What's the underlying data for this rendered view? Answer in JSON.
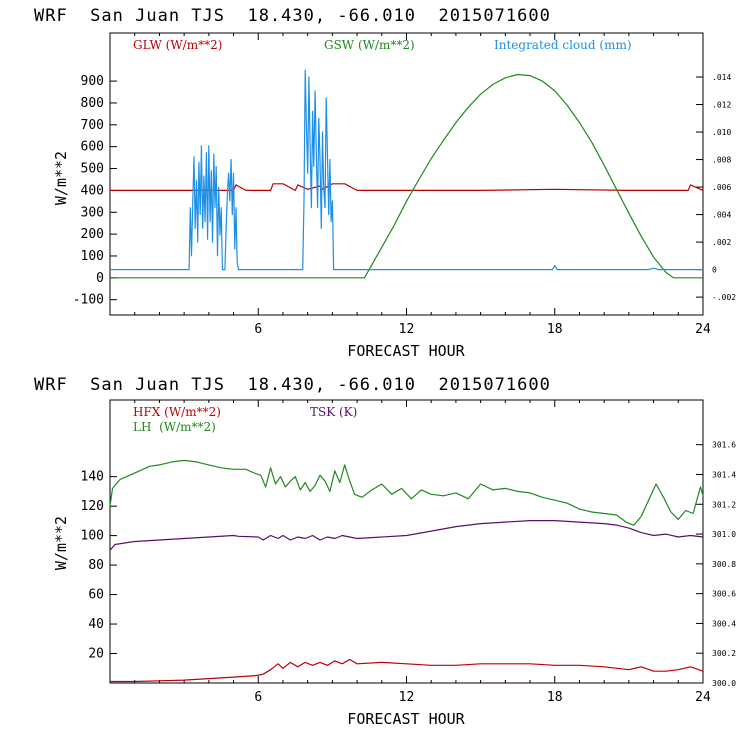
{
  "charts": [
    {
      "title": "WRF  San Juan TJS  18.430, -66.010  2015071600",
      "xlabel": "FORECAST HOUR",
      "ylabel": "W/m**2",
      "x_ticks": [
        "6",
        "12",
        "18",
        "24"
      ],
      "y_ticks": [
        "-100",
        "0",
        "100",
        "200",
        "300",
        "400",
        "500",
        "600",
        "700",
        "800",
        "900"
      ],
      "y2_ticks": [
        "-.002",
        "0",
        ".002",
        ".004",
        ".006",
        ".008",
        ".010",
        ".012",
        ".014"
      ],
      "legend": [
        {
          "label": "GLW (W/m**2)",
          "color": "#c00000"
        },
        {
          "label": "GSW (W/m**2)",
          "color": "#1f8a1f"
        },
        {
          "label": "Integrated cloud (mm)",
          "color": "#1e8fe6"
        }
      ]
    },
    {
      "title": "WRF  San Juan TJS  18.430, -66.010  2015071600",
      "xlabel": "FORECAST HOUR",
      "ylabel": "W/m**2",
      "x_ticks": [
        "6",
        "12",
        "18",
        "24"
      ],
      "y_ticks": [
        "20",
        "40",
        "60",
        "80",
        "100",
        "120",
        "140"
      ],
      "y2_ticks": [
        "300.0",
        "300.2",
        "300.4",
        "300.6",
        "300.8",
        "301.0",
        "301.2",
        "301.4",
        "301.6"
      ],
      "legend": [
        {
          "label": "HFX (W/m**2)",
          "color": "#c00000"
        },
        {
          "label": "LH  (W/m**2)",
          "color": "#1f8a1f"
        },
        {
          "label": "TSK (K)",
          "color": "#5a0f6e"
        }
      ]
    }
  ],
  "chart_data": [
    {
      "type": "line",
      "title": "WRF  San Juan TJS  18.430, -66.010  2015071600",
      "xlabel": "FORECAST HOUR",
      "ylabel": "W/m**2",
      "xlim": [
        0,
        24
      ],
      "ylim": [
        -170,
        1120
      ],
      "y2lim": [
        -0.0033,
        0.0172
      ],
      "grid": false,
      "legend_position": "top",
      "series": [
        {
          "name": "GLW (W/m**2)",
          "axis": "left",
          "color": "#c00000",
          "x": [
            0,
            3,
            5,
            5.1,
            5.5,
            6.5,
            6.6,
            7,
            7.5,
            7.6,
            8,
            8.5,
            8.6,
            9,
            9.5,
            10,
            12,
            15,
            18,
            21,
            23.4,
            23.5,
            24
          ],
          "y": [
            400,
            400,
            400,
            425,
            400,
            400,
            430,
            430,
            400,
            425,
            405,
            420,
            405,
            430,
            430,
            400,
            400,
            400,
            405,
            400,
            400,
            425,
            400
          ]
        },
        {
          "name": "GSW (W/m**2)",
          "axis": "left",
          "color": "#1f8a1f",
          "x": [
            0,
            10.3,
            10.5,
            11,
            11.5,
            12,
            12.5,
            13,
            13.5,
            14,
            14.5,
            15,
            15.5,
            16,
            16.5,
            17,
            17.5,
            18,
            18.5,
            19,
            19.5,
            20,
            20.5,
            21,
            21.5,
            22,
            22.5,
            22.8,
            24
          ],
          "y": [
            0,
            0,
            40,
            140,
            240,
            350,
            450,
            545,
            630,
            710,
            780,
            840,
            885,
            915,
            930,
            925,
            900,
            855,
            790,
            710,
            620,
            515,
            405,
            295,
            190,
            95,
            25,
            0,
            0
          ]
        },
        {
          "name": "Integrated cloud (mm)",
          "axis": "right",
          "color": "#1e8fe6",
          "x": [
            0,
            3.2,
            3.25,
            3.3,
            3.35,
            3.4,
            3.45,
            3.5,
            3.55,
            3.6,
            3.65,
            3.7,
            3.75,
            3.8,
            3.85,
            3.9,
            3.95,
            4.0,
            4.05,
            4.1,
            4.15,
            4.2,
            4.25,
            4.3,
            4.35,
            4.4,
            4.45,
            4.5,
            4.55,
            4.6,
            4.65,
            4.7,
            4.75,
            4.8,
            4.85,
            4.9,
            4.95,
            5.0,
            5.05,
            5.1,
            5.15,
            5.2,
            7.8,
            7.85,
            7.9,
            7.95,
            8.0,
            8.05,
            8.1,
            8.15,
            8.2,
            8.25,
            8.3,
            8.35,
            8.4,
            8.45,
            8.5,
            8.55,
            8.6,
            8.65,
            8.7,
            8.75,
            8.8,
            8.85,
            8.9,
            8.95,
            9.0,
            9.05,
            17.9,
            18.0,
            18.1,
            21.8,
            22.0,
            22.2,
            24
          ],
          "y": [
            0,
            0,
            0.0045,
            0.001,
            0.005,
            0.0082,
            0.003,
            0.0065,
            0.002,
            0.0078,
            0.004,
            0.009,
            0.003,
            0.0068,
            0.0035,
            0.0085,
            0.0022,
            0.009,
            0.0035,
            0.0072,
            0.002,
            0.0084,
            0.0045,
            0.0075,
            0.001,
            0.006,
            0.0025,
            0.0045,
            0,
            0,
            0,
            0.003,
            0.0055,
            0.007,
            0.005,
            0.008,
            0.004,
            0.007,
            0.0015,
            0.0045,
            0.0005,
            0,
            0,
            0.005,
            0.0145,
            0.0105,
            0.007,
            0.014,
            0.009,
            0.0045,
            0.0115,
            0.0075,
            0.013,
            0.0085,
            0.0045,
            0.011,
            0.008,
            0.003,
            0.01,
            0.006,
            0.0045,
            0.0125,
            0.0085,
            0.004,
            0.008,
            0.0035,
            0.005,
            0,
            0,
            0.0003,
            0,
            0,
            0.0001,
            0,
            0
          ]
        }
      ]
    },
    {
      "type": "line",
      "title": "WRF  San Juan TJS  18.430, -66.010  2015071600",
      "xlabel": "FORECAST HOUR",
      "ylabel": "W/m**2",
      "xlim": [
        0,
        24
      ],
      "ylim": [
        0,
        192
      ],
      "y2lim": [
        300.0,
        301.9
      ],
      "grid": false,
      "legend_position": "top-left",
      "series": [
        {
          "name": "HFX (W/m**2)",
          "axis": "left",
          "color": "#c00000",
          "x": [
            0,
            1,
            2,
            3,
            4,
            5,
            5.9,
            6.2,
            6.5,
            6.8,
            7,
            7.3,
            7.6,
            7.9,
            8.2,
            8.5,
            8.8,
            9.1,
            9.4,
            9.7,
            10,
            11,
            12,
            13,
            14,
            15,
            16,
            17,
            18,
            19,
            20,
            21,
            21.5,
            22,
            22.5,
            23,
            23.5,
            24
          ],
          "y": [
            1,
            1,
            1.5,
            2,
            3,
            4,
            5,
            6,
            9,
            13,
            10,
            14,
            11,
            14,
            12,
            14,
            12,
            15,
            13,
            16,
            13,
            14,
            13,
            12,
            12,
            13,
            13,
            13,
            12,
            12,
            11,
            9,
            11,
            8,
            8,
            9,
            11,
            8
          ]
        },
        {
          "name": "LH  (W/m**2)",
          "axis": "left",
          "color": "#1f8a1f",
          "x": [
            0,
            0.1,
            0.4,
            0.8,
            1.2,
            1.6,
            2,
            2.5,
            3,
            3.5,
            4,
            4.5,
            5,
            5.5,
            5.9,
            6.1,
            6.3,
            6.5,
            6.7,
            6.9,
            7.1,
            7.3,
            7.5,
            7.7,
            7.9,
            8.1,
            8.3,
            8.5,
            8.7,
            8.9,
            9.1,
            9.3,
            9.5,
            9.7,
            9.9,
            10.2,
            10.6,
            11,
            11.4,
            11.8,
            12.2,
            12.6,
            13,
            13.5,
            14,
            14.5,
            15,
            15.5,
            16,
            16.5,
            17,
            17.5,
            18,
            18.5,
            19,
            19.5,
            20,
            20.5,
            20.9,
            21.2,
            21.5,
            21.8,
            22.1,
            22.4,
            22.7,
            23,
            23.3,
            23.6,
            23.9,
            24
          ],
          "y": [
            120,
            132,
            138,
            141,
            144,
            147,
            148,
            150,
            151,
            150,
            148,
            146,
            145,
            145,
            142,
            141,
            133,
            146,
            135,
            140,
            133,
            137,
            140,
            131,
            136,
            130,
            134,
            141,
            137,
            130,
            144,
            136,
            148,
            137,
            128,
            126,
            131,
            135,
            128,
            132,
            125,
            131,
            128,
            127,
            129,
            125,
            135,
            131,
            132,
            130,
            129,
            126,
            124,
            122,
            118,
            116,
            115,
            114,
            109,
            107,
            113,
            124,
            135,
            126,
            116,
            111,
            117,
            115,
            133,
            127
          ]
        },
        {
          "name": "TSK (K)",
          "axis": "right",
          "color": "#5a0f6e",
          "x": [
            0,
            0.2,
            1,
            2,
            3,
            4,
            5,
            5.2,
            6,
            6.2,
            6.5,
            6.8,
            7,
            7.3,
            7.6,
            7.9,
            8.2,
            8.5,
            8.8,
            9.1,
            9.4,
            9.7,
            10,
            12,
            13,
            14,
            15,
            16,
            17,
            18,
            19,
            20,
            20.5,
            21,
            21.5,
            22,
            22.5,
            23,
            23.5,
            24
          ],
          "y": [
            300.89,
            300.93,
            300.95,
            300.96,
            300.97,
            300.98,
            300.99,
            300.985,
            300.98,
            300.96,
            300.99,
            300.97,
            300.99,
            300.96,
            300.98,
            300.97,
            300.99,
            300.96,
            300.98,
            300.97,
            300.99,
            300.98,
            300.97,
            300.99,
            301.02,
            301.05,
            301.07,
            301.08,
            301.09,
            301.09,
            301.08,
            301.07,
            301.06,
            301.04,
            301.01,
            300.99,
            301.0,
            300.98,
            300.99,
            300.98
          ]
        }
      ]
    }
  ]
}
